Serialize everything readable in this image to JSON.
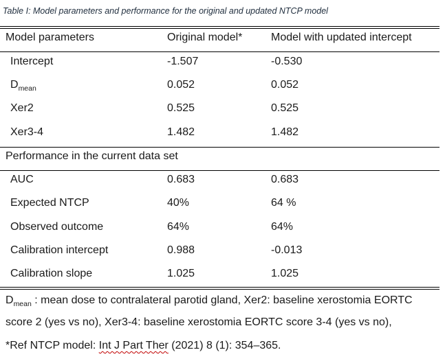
{
  "caption": "Table I: Model parameters and performance for the original and updated NTCP model",
  "table": {
    "headers": [
      "Model parameters",
      "Original model*",
      "Model with updated  intercept"
    ],
    "parameters": [
      {
        "name": "Intercept",
        "sub": "",
        "original": "-1.507",
        "updated": "-0.530"
      },
      {
        "name": "D",
        "sub": "mean",
        "original": "0.052",
        "updated": "0.052"
      },
      {
        "name": "Xer2",
        "sub": "",
        "original": "0.525",
        "updated": "0.525"
      },
      {
        "name": "Xer3-4",
        "sub": "",
        "original": "1.482",
        "updated": "1.482"
      }
    ],
    "section_label": "Performance in the current data set",
    "performance": [
      {
        "name": "AUC",
        "original": "0.683",
        "updated": "0.683"
      },
      {
        "name": "Expected NTCP",
        "original": "40%",
        "updated": "64 %"
      },
      {
        "name": "Observed outcome",
        "original": "64%",
        "updated": "64%"
      },
      {
        "name": "Calibration intercept",
        "original": "0.988",
        "updated": "-0.013"
      },
      {
        "name": "Calibration slope",
        "original": "1.025",
        "updated": "1.025"
      }
    ]
  },
  "footnote": {
    "line1_d": "D",
    "line1_sub": "mean",
    "line1_rest": " : mean dose to contralateral parotid gland, Xer2: baseline xerostomia EORTC",
    "line2": "score 2 (yes vs no), Xer3-4: baseline xerostomia EORTC score 3-4 (yes vs no),",
    "line3_pre": "*Ref NTCP model: ",
    "line3_link": "Int J Part Ther",
    "line3_post": " (2021) 8 (1): 354–365."
  }
}
